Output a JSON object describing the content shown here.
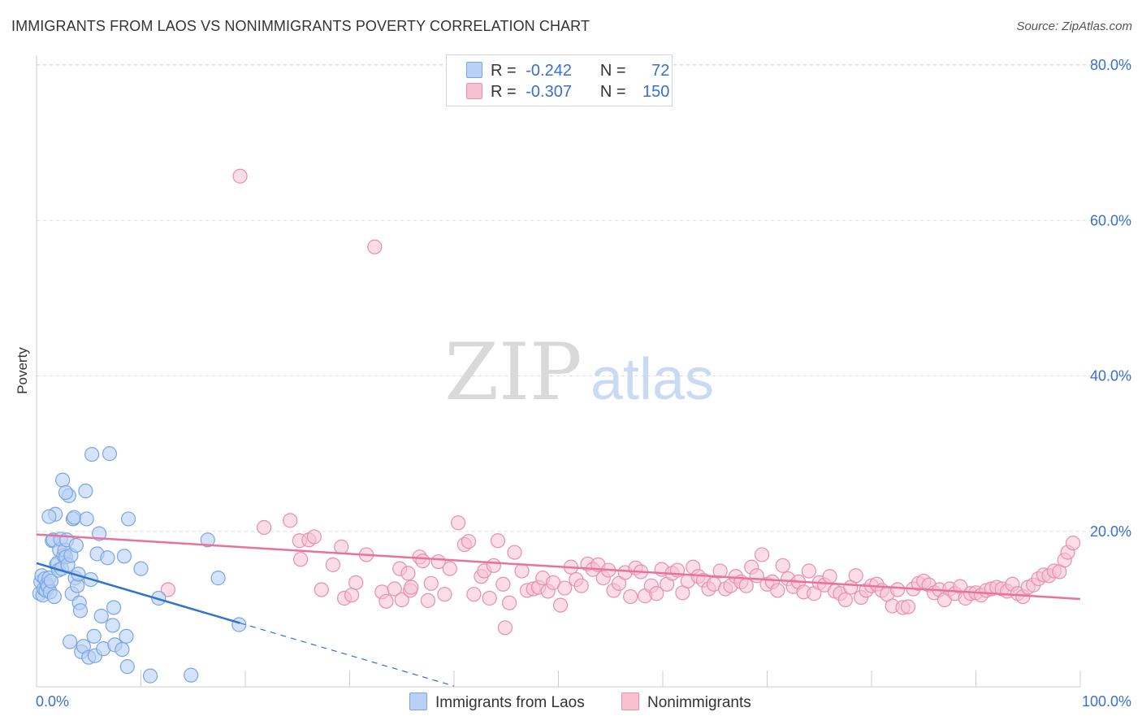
{
  "header": {
    "title": "IMMIGRANTS FROM LAOS VS NONIMMIGRANTS POVERTY CORRELATION CHART",
    "source": "Source: ZipAtlas.com"
  },
  "legend": {
    "r_label": "R =",
    "n_label": "N =",
    "series": [
      {
        "r": "-0.242",
        "n": "72"
      },
      {
        "r": "-0.307",
        "n": "150"
      }
    ]
  },
  "bottom_legend": [
    "Immigrants from Laos",
    "Nonimmigrants"
  ],
  "watermark": {
    "zip": "ZIP",
    "atlas": "atlas"
  },
  "colors": {
    "blue_fill": "#b8d1f5",
    "blue_stroke": "#7aa6e0",
    "blue_line": "#2f72d0",
    "pink_fill": "#f7c1d1",
    "pink_stroke": "#e88fae",
    "pink_line": "#e8739a",
    "tick_text": "#3a6fcf"
  },
  "chart_data": {
    "type": "scatter",
    "ylabel": "Poverty",
    "xlabel": "",
    "xlim": [
      0,
      100
    ],
    "ylim": [
      0,
      80
    ],
    "x_tick_labels": [
      "0.0%",
      "100.0%"
    ],
    "y_ticks": [
      20,
      40,
      60,
      80
    ],
    "y_tick_labels": [
      "20.0%",
      "40.0%",
      "60.0%",
      "80.0%"
    ],
    "grid": "horizontal dashed",
    "series": [
      {
        "name": "Immigrants from Laos",
        "trend": {
          "x0": 0,
          "y0": 15.9,
          "x1": 19.5,
          "y1": 8.2,
          "dashed_to_x": 40,
          "dashed_to_y": 0.1
        },
        "points": [
          [
            0.3,
            12.0
          ],
          [
            0.4,
            13.5
          ],
          [
            0.5,
            14.3
          ],
          [
            0.6,
            11.8
          ],
          [
            0.7,
            12.6
          ],
          [
            0.8,
            13.9
          ],
          [
            0.9,
            12.4
          ],
          [
            1.0,
            13.2
          ],
          [
            1.1,
            12.9
          ],
          [
            1.2,
            14.0
          ],
          [
            1.3,
            12.2
          ],
          [
            1.4,
            13.6
          ],
          [
            1.5,
            18.8
          ],
          [
            1.6,
            18.9
          ],
          [
            1.7,
            11.6
          ],
          [
            1.8,
            22.2
          ],
          [
            1.9,
            15.7
          ],
          [
            2.0,
            15.9
          ],
          [
            2.1,
            15.0
          ],
          [
            2.2,
            17.6
          ],
          [
            2.3,
            19.0
          ],
          [
            2.4,
            15.2
          ],
          [
            2.5,
            26.6
          ],
          [
            2.6,
            16.9
          ],
          [
            2.7,
            17.6
          ],
          [
            2.8,
            16.7
          ],
          [
            2.9,
            18.9
          ],
          [
            3.0,
            15.7
          ],
          [
            3.1,
            24.6
          ],
          [
            3.2,
            5.8
          ],
          [
            3.3,
            16.9
          ],
          [
            3.4,
            12.0
          ],
          [
            3.5,
            21.6
          ],
          [
            3.6,
            21.8
          ],
          [
            3.7,
            14.0
          ],
          [
            3.8,
            18.2
          ],
          [
            3.9,
            13.0
          ],
          [
            4.0,
            14.5
          ],
          [
            4.1,
            10.8
          ],
          [
            4.2,
            9.8
          ],
          [
            4.3,
            4.5
          ],
          [
            4.5,
            5.2
          ],
          [
            4.7,
            25.2
          ],
          [
            4.8,
            21.6
          ],
          [
            5.0,
            3.8
          ],
          [
            5.2,
            13.8
          ],
          [
            5.3,
            29.9
          ],
          [
            5.5,
            6.5
          ],
          [
            5.6,
            4.0
          ],
          [
            5.8,
            17.1
          ],
          [
            6.0,
            19.7
          ],
          [
            6.2,
            9.1
          ],
          [
            6.4,
            4.9
          ],
          [
            6.8,
            16.6
          ],
          [
            7.0,
            30.0
          ],
          [
            7.3,
            7.9
          ],
          [
            7.5,
            5.4
          ],
          [
            8.2,
            4.8
          ],
          [
            8.4,
            16.8
          ],
          [
            8.6,
            6.5
          ],
          [
            8.7,
            2.6
          ],
          [
            8.8,
            21.6
          ],
          [
            10.0,
            15.2
          ],
          [
            10.9,
            1.4
          ],
          [
            11.7,
            11.4
          ],
          [
            14.8,
            1.5
          ],
          [
            16.4,
            18.9
          ],
          [
            17.4,
            14.0
          ],
          [
            19.4,
            8.0
          ],
          [
            7.4,
            10.2
          ],
          [
            1.2,
            21.9
          ],
          [
            2.8,
            25.0
          ]
        ]
      },
      {
        "name": "Nonimmigrants",
        "trend": {
          "x0": 0,
          "y0": 19.6,
          "x1": 100,
          "y1": 11.3
        },
        "points": [
          [
            12.6,
            12.5
          ],
          [
            19.5,
            65.7
          ],
          [
            21.8,
            20.5
          ],
          [
            24.3,
            21.4
          ],
          [
            25.2,
            18.8
          ],
          [
            25.3,
            16.4
          ],
          [
            26.1,
            18.9
          ],
          [
            26.6,
            19.3
          ],
          [
            27.3,
            12.5
          ],
          [
            28.4,
            15.7
          ],
          [
            29.2,
            18.0
          ],
          [
            29.5,
            11.4
          ],
          [
            30.2,
            11.8
          ],
          [
            30.6,
            13.4
          ],
          [
            31.6,
            17.0
          ],
          [
            32.4,
            56.6
          ],
          [
            33.1,
            12.2
          ],
          [
            33.5,
            11.0
          ],
          [
            34.3,
            12.6
          ],
          [
            34.8,
            15.2
          ],
          [
            35.0,
            11.2
          ],
          [
            35.6,
            14.6
          ],
          [
            35.8,
            12.4
          ],
          [
            36.7,
            16.7
          ],
          [
            37.0,
            16.2
          ],
          [
            37.5,
            11.1
          ],
          [
            37.8,
            13.3
          ],
          [
            38.5,
            16.1
          ],
          [
            39.1,
            11.9
          ],
          [
            39.6,
            15.2
          ],
          [
            40.4,
            21.1
          ],
          [
            41.0,
            18.3
          ],
          [
            41.4,
            18.7
          ],
          [
            41.9,
            11.9
          ],
          [
            42.6,
            14.2
          ],
          [
            42.9,
            14.9
          ],
          [
            43.4,
            11.4
          ],
          [
            43.8,
            15.6
          ],
          [
            44.2,
            18.8
          ],
          [
            44.7,
            13.2
          ],
          [
            44.9,
            7.6
          ],
          [
            45.3,
            10.8
          ],
          [
            45.8,
            17.3
          ],
          [
            46.5,
            14.9
          ],
          [
            47.0,
            12.4
          ],
          [
            47.6,
            12.6
          ],
          [
            48.1,
            12.8
          ],
          [
            48.5,
            14.0
          ],
          [
            49.0,
            12.3
          ],
          [
            49.5,
            13.4
          ],
          [
            50.2,
            10.5
          ],
          [
            50.6,
            12.7
          ],
          [
            51.2,
            15.4
          ],
          [
            51.7,
            13.8
          ],
          [
            52.2,
            13.0
          ],
          [
            52.8,
            15.8
          ],
          [
            53.3,
            15.1
          ],
          [
            53.8,
            15.7
          ],
          [
            54.3,
            14.0
          ],
          [
            54.8,
            15.0
          ],
          [
            55.3,
            12.4
          ],
          [
            55.8,
            13.3
          ],
          [
            56.4,
            14.7
          ],
          [
            56.9,
            11.6
          ],
          [
            57.4,
            15.3
          ],
          [
            57.9,
            14.8
          ],
          [
            58.3,
            11.7
          ],
          [
            58.9,
            13.0
          ],
          [
            59.4,
            12.0
          ],
          [
            59.9,
            15.1
          ],
          [
            60.4,
            13.2
          ],
          [
            60.9,
            14.6
          ],
          [
            61.4,
            15.0
          ],
          [
            61.9,
            12.1
          ],
          [
            62.4,
            13.6
          ],
          [
            62.9,
            15.4
          ],
          [
            63.4,
            14.2
          ],
          [
            63.9,
            13.7
          ],
          [
            64.4,
            12.6
          ],
          [
            64.9,
            13.2
          ],
          [
            65.5,
            14.9
          ],
          [
            66.0,
            12.6
          ],
          [
            66.5,
            13.0
          ],
          [
            67.0,
            14.2
          ],
          [
            67.5,
            13.5
          ],
          [
            68.0,
            13.0
          ],
          [
            68.5,
            15.4
          ],
          [
            69.0,
            14.3
          ],
          [
            69.5,
            17.0
          ],
          [
            70.0,
            13.2
          ],
          [
            70.5,
            13.5
          ],
          [
            71.0,
            12.4
          ],
          [
            71.5,
            15.6
          ],
          [
            72.0,
            13.9
          ],
          [
            72.5,
            12.9
          ],
          [
            73.0,
            13.5
          ],
          [
            73.5,
            12.2
          ],
          [
            74.0,
            14.9
          ],
          [
            74.5,
            12.0
          ],
          [
            75.0,
            13.4
          ],
          [
            75.5,
            13.1
          ],
          [
            76.0,
            14.2
          ],
          [
            76.5,
            12.3
          ],
          [
            77.0,
            12.0
          ],
          [
            77.5,
            11.2
          ],
          [
            78.0,
            12.8
          ],
          [
            78.5,
            14.3
          ],
          [
            79.0,
            11.5
          ],
          [
            79.5,
            12.4
          ],
          [
            80.0,
            13.0
          ],
          [
            80.5,
            13.2
          ],
          [
            81.0,
            12.4
          ],
          [
            81.5,
            11.9
          ],
          [
            82.0,
            10.4
          ],
          [
            82.5,
            12.5
          ],
          [
            83.0,
            10.2
          ],
          [
            83.5,
            10.3
          ],
          [
            84.0,
            12.6
          ],
          [
            84.5,
            13.3
          ],
          [
            85.0,
            13.6
          ],
          [
            85.5,
            13.1
          ],
          [
            86.0,
            12.1
          ],
          [
            86.5,
            12.5
          ],
          [
            87.0,
            11.2
          ],
          [
            87.5,
            12.6
          ],
          [
            88.0,
            12.0
          ],
          [
            88.5,
            12.9
          ],
          [
            89.0,
            11.4
          ],
          [
            89.5,
            12.0
          ],
          [
            90.0,
            12.1
          ],
          [
            90.5,
            11.8
          ],
          [
            91.0,
            12.4
          ],
          [
            91.5,
            12.6
          ],
          [
            92.0,
            12.8
          ],
          [
            92.5,
            12.6
          ],
          [
            93.0,
            12.3
          ],
          [
            93.5,
            13.2
          ],
          [
            94.0,
            12.0
          ],
          [
            94.5,
            11.6
          ],
          [
            95.0,
            12.8
          ],
          [
            95.5,
            13.1
          ],
          [
            96.0,
            13.9
          ],
          [
            96.5,
            14.4
          ],
          [
            97.0,
            14.3
          ],
          [
            97.5,
            14.9
          ],
          [
            98.0,
            14.8
          ],
          [
            98.5,
            16.3
          ],
          [
            98.8,
            17.3
          ],
          [
            99.3,
            18.5
          ],
          [
            35.9,
            12.8
          ]
        ]
      }
    ]
  }
}
